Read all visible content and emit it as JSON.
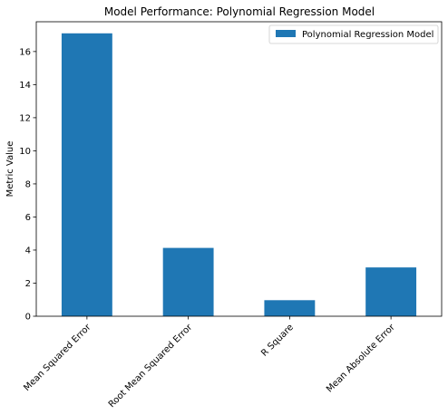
{
  "chart_data": {
    "type": "bar",
    "title": "Model Performance: Polynomial Regression Model",
    "xlabel": "",
    "ylabel": "Metric Value",
    "categories": [
      "Mean Squared Error",
      "Root Mean Squared Error",
      "R Square",
      "Mean Absolute Error"
    ],
    "series": [
      {
        "name": "Polynomial Regression Model",
        "values": [
          17.1,
          4.13,
          0.97,
          2.95
        ],
        "color": "#1f77b4"
      }
    ],
    "ylim": [
      0,
      17.8
    ],
    "yticks": [
      0,
      2,
      4,
      6,
      8,
      10,
      12,
      14,
      16
    ],
    "grid": false,
    "legend": "top-right"
  }
}
